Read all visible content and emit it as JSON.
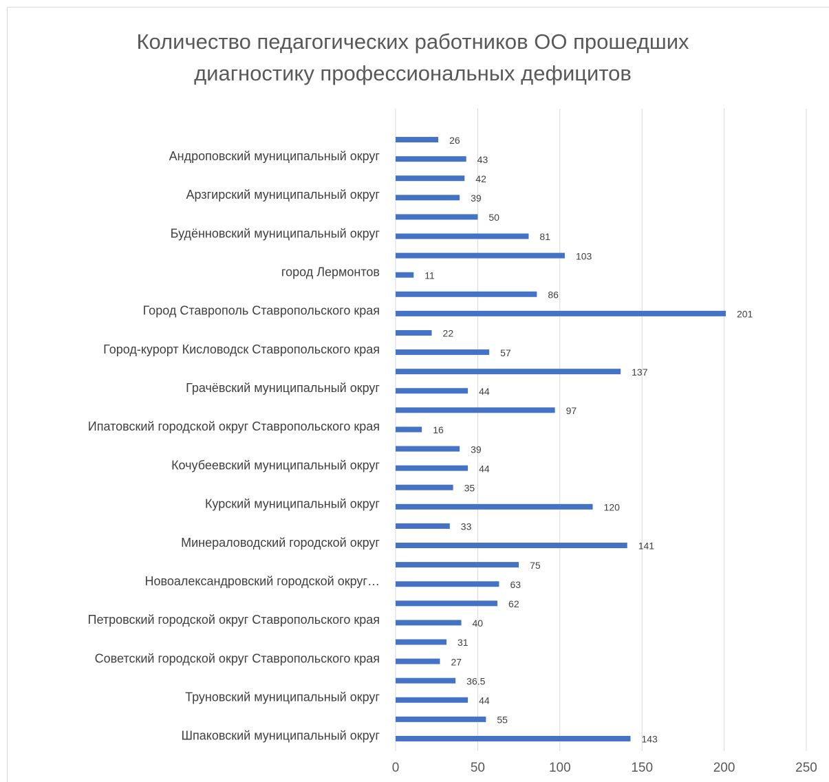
{
  "chart_data": {
    "type": "barh",
    "title": "Количество педагогических работников ОО прошедших диагностику профессиональных дефицитов",
    "categories": [
      null,
      "Андроповский муниципальный округ",
      null,
      "Арзгирский муниципальный округ",
      null,
      "Будённовский муниципальный округ",
      null,
      "город Лермонтов",
      null,
      "Город Ставрополь Ставропольского края",
      null,
      "Город-курорт Кисловодск Ставропольского края",
      null,
      "Грачёвский муниципальный округ",
      null,
      "Ипатовский городской округ Ставропольского края",
      null,
      "Кочубеевский муниципальный округ",
      null,
      "Курский муниципальный округ",
      null,
      "Минераловодский городской округ",
      null,
      "Новоалександровский городской округ…",
      null,
      "Петровский городской округ Ставропольского края",
      null,
      "Советский городской округ Ставропольского края",
      null,
      "Труновский муниципальный округ",
      null,
      "Шпаковский муниципальный округ"
    ],
    "values": [
      26,
      43,
      42,
      39,
      50,
      81,
      103,
      11,
      86,
      201,
      22,
      57,
      137,
      44,
      97,
      16,
      39,
      44,
      35,
      120,
      33,
      141,
      75,
      63,
      62,
      40,
      31,
      27,
      36.5,
      44,
      55,
      143
    ],
    "color": "#4472c4",
    "xlim": [
      0,
      250
    ],
    "xticks": [
      0,
      50,
      100,
      150,
      200,
      250
    ],
    "grid": true
  }
}
